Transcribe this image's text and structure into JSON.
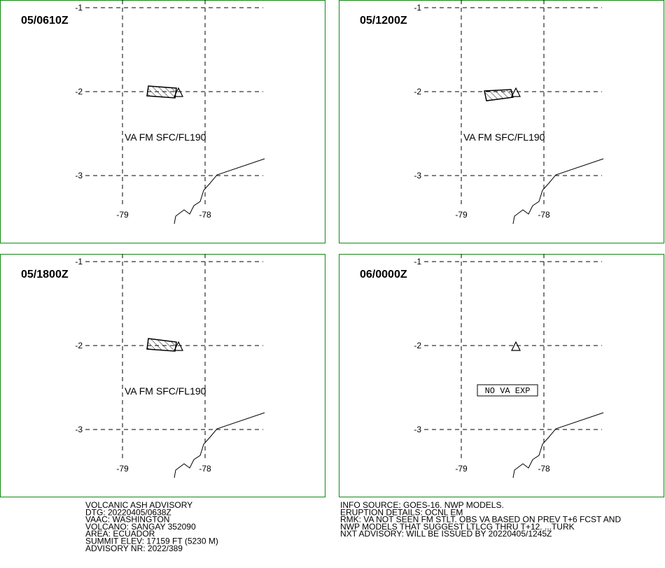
{
  "panels": [
    {
      "time": "05/0610Z",
      "label": "VA FM SFC/FL190"
    },
    {
      "time": "05/1200Z",
      "label": "VA FM SFC/FL190"
    },
    {
      "time": "05/1800Z",
      "label": "VA FM SFC/FL190"
    },
    {
      "time": "06/0000Z",
      "label": "NO VA EXP"
    }
  ],
  "grid_labels": {
    "lat": [
      "-1",
      "-2",
      "-3"
    ],
    "lon": [
      "-79",
      "-78"
    ]
  },
  "advisory_left": [
    "VOLCANIC ASH ADVISORY",
    "DTG: 20220405/0638Z",
    "VAAC: WASHINGTON",
    "VOLCANO: SANGAY 352090",
    "AREA: ECUADOR",
    "SUMMIT ELEV: 17159 FT (5230 M)",
    "ADVISORY NR: 2022/389"
  ],
  "advisory_right": [
    "INFO SOURCE: GOES-16. NWP MODELS.",
    "ERUPTION DETAILS: OCNL EM",
    "RMK: VA NOT SEEN FM STLT. OBS VA BASED ON PREV T+6 FCST AND",
    "NWP MODELS THAT SUGGEST LTLCG THRU T+12. ...TURK",
    "NXT ADVISORY: WILL BE ISSUED BY 20220405/1245Z"
  ]
}
